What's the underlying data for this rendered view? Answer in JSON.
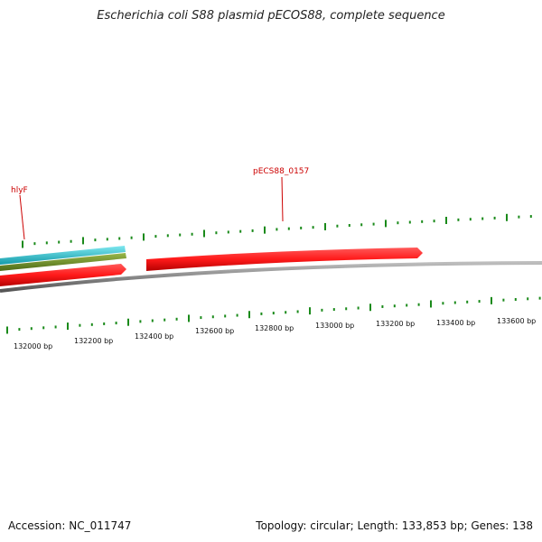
{
  "title": "Escherichia coli S88 plasmid pECOS88, complete sequence",
  "footer": {
    "accession": "Accession: NC_011747",
    "stats": "Topology: circular; Length: 133,853 bp; Genes: 138"
  },
  "colors": {
    "backbone": "#808080",
    "gene_forward": "#ff1a1a",
    "feature_cyan": "#22c7d6",
    "feature_olive": "#6b8e23",
    "tick_green": "#1a8a1a",
    "gene_label": "#cc0000"
  },
  "gene_labels": [
    {
      "name": "hlyF"
    },
    {
      "name": "pECS88_0157"
    }
  ],
  "scale_labels": [
    "132000 bp",
    "132200 bp",
    "132400 bp",
    "132600 bp",
    "132800 bp",
    "133000 bp",
    "133200 bp",
    "133400 bp",
    "133600 bp"
  ]
}
